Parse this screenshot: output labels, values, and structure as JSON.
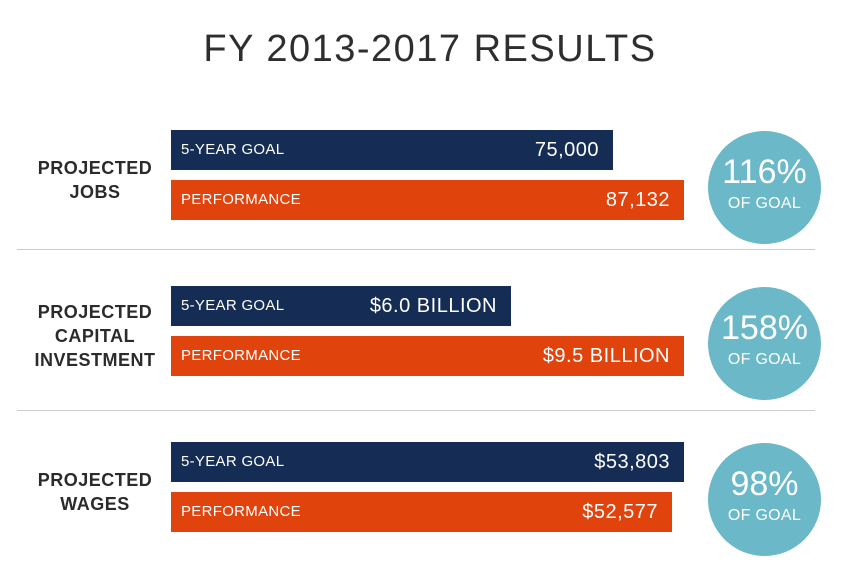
{
  "title": "FY 2013-2017 RESULTS",
  "colors": {
    "goal": "#152d54",
    "performance": "#e0430b",
    "badge": "#6ab8c8"
  },
  "chart_data": {
    "type": "bar",
    "title": "FY 2013-2017 RESULTS",
    "series": [
      {
        "name": "5-YEAR GOAL"
      },
      {
        "name": "PERFORMANCE"
      }
    ],
    "rows": [
      {
        "label_lines": [
          "PROJECTED",
          "JOBS"
        ],
        "goal": {
          "label": "5-YEAR GOAL",
          "value": 75000,
          "display": "75,000"
        },
        "performance": {
          "label": "PERFORMANCE",
          "value": 87132,
          "display": "87,132"
        },
        "percent": "116%",
        "percent_sub": "OF GOAL"
      },
      {
        "label_lines": [
          "PROJECTED",
          "CAPITAL",
          "INVESTMENT"
        ],
        "goal": {
          "label": "5-YEAR GOAL",
          "value": 6.0,
          "display": "$6.0 BILLION"
        },
        "performance": {
          "label": "PERFORMANCE",
          "value": 9.5,
          "display": "$9.5 BILLION"
        },
        "percent": "158%",
        "percent_sub": "OF GOAL"
      },
      {
        "label_lines": [
          "PROJECTED",
          "WAGES"
        ],
        "goal": {
          "label": "5-YEAR GOAL",
          "value": 53803,
          "display": "$53,803"
        },
        "performance": {
          "label": "PERFORMANCE",
          "value": 52577,
          "display": "$52,577"
        },
        "percent": "98%",
        "percent_sub": "OF GOAL"
      }
    ]
  }
}
